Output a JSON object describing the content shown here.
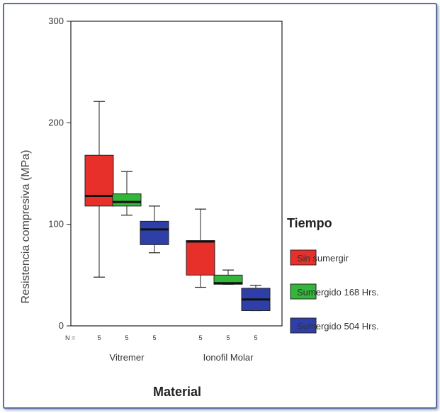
{
  "chart_data": {
    "type": "boxplot",
    "xlabel": "Material",
    "ylabel": "Resistencia compresiva (MPa)",
    "ylim": [
      0,
      300
    ],
    "yticks": [
      0,
      100,
      200,
      300
    ],
    "grid": false,
    "legend_placement": "right",
    "categories": [
      "Vitremer",
      "Ionofil Molar"
    ],
    "n_label": "N =",
    "n_values": [
      "5",
      "5",
      "5",
      "5",
      "5",
      "5"
    ],
    "legend": {
      "title": "Tiempo",
      "entries": [
        {
          "name": "Sin sumergir",
          "color": "#e8302a"
        },
        {
          "name": "Sumergido 168 Hrs.",
          "color": "#33b63a"
        },
        {
          "name": "Sumergido 504 Hrs.",
          "color": "#2f3fa8"
        }
      ]
    },
    "series": [
      {
        "name": "Sin sumergir",
        "color": "#e8302a",
        "boxes": [
          {
            "category": "Vitremer",
            "min": 48,
            "q1": 118,
            "median": 128,
            "q3": 168,
            "max": 221
          },
          {
            "category": "Ionofil Molar",
            "min": 38,
            "q1": 50,
            "median": 83,
            "q3": 84,
            "max": 115
          }
        ]
      },
      {
        "name": "Sumergido 168 Hrs.",
        "color": "#33b63a",
        "boxes": [
          {
            "category": "Vitremer",
            "min": 109,
            "q1": 118,
            "median": 122,
            "q3": 130,
            "max": 152
          },
          {
            "category": "Ionofil Molar",
            "min": 41,
            "q1": 41,
            "median": 42,
            "q3": 50,
            "max": 55
          }
        ]
      },
      {
        "name": "Sumergido 504 Hrs.",
        "color": "#2f3fa8",
        "boxes": [
          {
            "category": "Vitremer",
            "min": 72,
            "q1": 80,
            "median": 95,
            "q3": 103,
            "max": 118
          },
          {
            "category": "Ionofil Molar",
            "min": 15,
            "q1": 15,
            "median": 26,
            "q3": 37,
            "max": 40
          }
        ]
      }
    ]
  }
}
